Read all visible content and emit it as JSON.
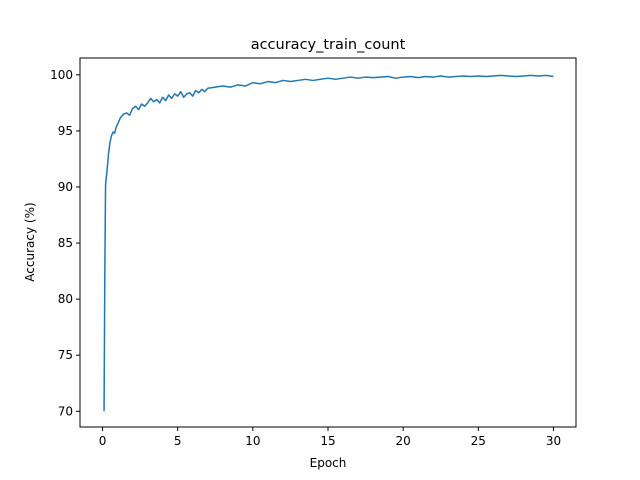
{
  "chart_data": {
    "type": "line",
    "title": "accuracy_train_count",
    "xlabel": "Epoch",
    "ylabel": "Accuracy (%)",
    "xlim": [
      -1.5,
      31.5
    ],
    "ylim": [
      68.6,
      101.5
    ],
    "grid": false,
    "legend": "none",
    "x_ticks": [
      0,
      5,
      10,
      15,
      20,
      25,
      30
    ],
    "x_tick_labels": [
      "0",
      "5",
      "10",
      "15",
      "20",
      "25",
      "30"
    ],
    "y_ticks": [
      70,
      75,
      80,
      85,
      90,
      95,
      100
    ],
    "y_tick_labels": [
      "70",
      "75",
      "80",
      "85",
      "90",
      "95",
      "100"
    ],
    "line_color": "#1f77b4",
    "series": [
      {
        "x": [
          0.1,
          0.15,
          0.2,
          0.3,
          0.4,
          0.5,
          0.6,
          0.7,
          0.8,
          0.9,
          1.0,
          1.2,
          1.4,
          1.6,
          1.8,
          2.0,
          2.2,
          2.4,
          2.6,
          2.8,
          3.0,
          3.2,
          3.4,
          3.6,
          3.8,
          4.0,
          4.2,
          4.4,
          4.6,
          4.8,
          5.0,
          5.2,
          5.4,
          5.6,
          5.8,
          6.0,
          6.2,
          6.4,
          6.6,
          6.8,
          7.0,
          7.5,
          8.0,
          8.5,
          9.0,
          9.5,
          10.0,
          10.5,
          11.0,
          11.5,
          12.0,
          12.5,
          13.0,
          13.5,
          14.0,
          14.5,
          15.0,
          15.5,
          16.0,
          16.5,
          17.0,
          17.5,
          18.0,
          18.5,
          19.0,
          19.5,
          20.0,
          20.5,
          21.0,
          21.5,
          22.0,
          22.5,
          23.0,
          23.5,
          24.0,
          24.5,
          25.0,
          25.5,
          26.0,
          26.5,
          27.0,
          27.5,
          28.0,
          28.5,
          29.0,
          29.5,
          30.0
        ],
        "y": [
          70.0,
          82.0,
          90.2,
          91.5,
          93.0,
          94.0,
          94.6,
          94.9,
          94.8,
          95.3,
          95.6,
          96.2,
          96.5,
          96.6,
          96.4,
          97.0,
          97.2,
          96.9,
          97.4,
          97.2,
          97.5,
          97.9,
          97.6,
          97.8,
          97.5,
          98.0,
          97.7,
          98.2,
          97.9,
          98.3,
          98.1,
          98.5,
          98.0,
          98.3,
          98.4,
          98.1,
          98.6,
          98.4,
          98.7,
          98.5,
          98.8,
          98.9,
          99.0,
          98.9,
          99.1,
          99.0,
          99.3,
          99.2,
          99.4,
          99.3,
          99.5,
          99.4,
          99.5,
          99.6,
          99.5,
          99.6,
          99.7,
          99.6,
          99.7,
          99.8,
          99.7,
          99.8,
          99.75,
          99.8,
          99.85,
          99.7,
          99.8,
          99.85,
          99.75,
          99.85,
          99.8,
          99.9,
          99.8,
          99.85,
          99.9,
          99.85,
          99.9,
          99.85,
          99.9,
          99.95,
          99.9,
          99.85,
          99.9,
          99.95,
          99.9,
          99.95,
          99.85
        ]
      }
    ]
  }
}
